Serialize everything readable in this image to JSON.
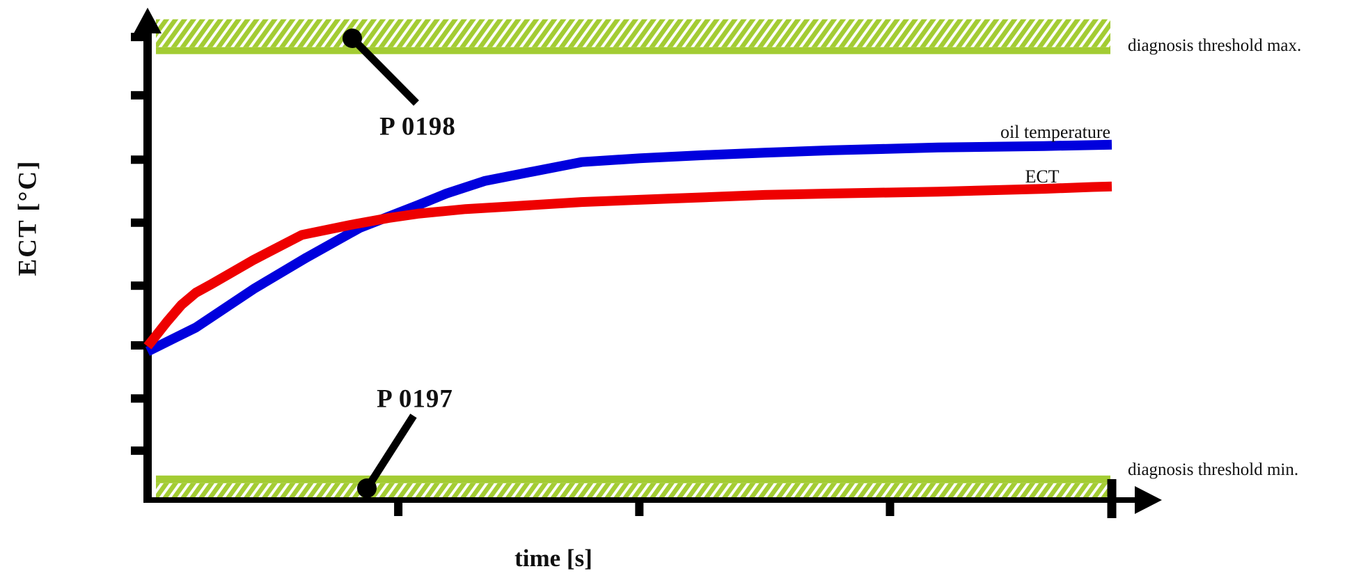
{
  "figure": {
    "colors": {
      "threshold_band_green": "#a3cc33",
      "oil_temperature_blue": "#0000dd",
      "ect_red": "#ee0000",
      "axis_black": "#000000"
    }
  },
  "chart_data": {
    "type": "line",
    "title": "",
    "xlabel": "time [s]",
    "ylabel": "ECT [°C]",
    "axis_units_note": "axes are unlabeled; values are relative 0-100 of plot area",
    "xlim": [
      0,
      100
    ],
    "ylim": [
      0,
      100
    ],
    "grid": false,
    "legend_position": "inline-right-of-curves",
    "x_ticks": [
      26,
      51,
      77,
      100
    ],
    "y_ticks": [
      10.5,
      21.6,
      32.9,
      45.6,
      59.0,
      72.4,
      86.1,
      98.5
    ],
    "series": [
      {
        "name": "oil temperature",
        "color": "#0000dd",
        "points": [
          [
            0,
            31.6
          ],
          [
            5,
            36.7
          ],
          [
            11,
            44.9
          ],
          [
            16.5,
            51.6
          ],
          [
            22,
            57.9
          ],
          [
            28,
            62.7
          ],
          [
            31,
            65.2
          ],
          [
            35,
            67.9
          ],
          [
            40,
            69.9
          ],
          [
            45,
            71.9
          ],
          [
            51,
            72.7
          ],
          [
            57,
            73.3
          ],
          [
            64,
            73.9
          ],
          [
            71,
            74.4
          ],
          [
            82,
            75.0
          ],
          [
            93,
            75.3
          ],
          [
            100,
            75.6
          ]
        ]
      },
      {
        "name": "ECT",
        "color": "#ee0000",
        "points": [
          [
            0,
            32.7
          ],
          [
            2,
            37.9
          ],
          [
            3.5,
            41.5
          ],
          [
            5,
            44.1
          ],
          [
            6.6,
            45.9
          ],
          [
            11,
            51.1
          ],
          [
            16,
            56.4
          ],
          [
            21,
            58.5
          ],
          [
            25,
            60.0
          ],
          [
            28,
            60.9
          ],
          [
            33,
            61.9
          ],
          [
            38,
            62.5
          ],
          [
            45,
            63.4
          ],
          [
            54,
            64.1
          ],
          [
            64,
            64.9
          ],
          [
            71,
            65.2
          ],
          [
            82,
            65.6
          ],
          [
            93,
            66.2
          ],
          [
            98,
            66.6
          ],
          [
            100,
            66.7
          ]
        ]
      }
    ],
    "thresholds": [
      {
        "name": "diagnosis threshold max.",
        "code": "P 0198",
        "value": 95.6,
        "hatch_side": "above",
        "color": "#a3cc33"
      },
      {
        "name": "diagnosis threshold min.",
        "code": "P 0197",
        "value": 4.4,
        "hatch_side": "below",
        "color": "#a3cc33"
      }
    ]
  }
}
